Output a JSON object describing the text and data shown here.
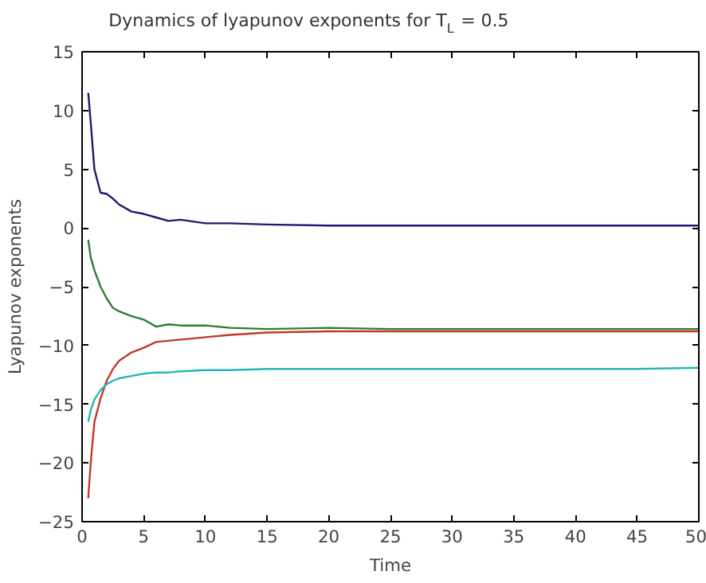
{
  "chart_data": {
    "type": "line",
    "title": "Dynamics of lyapunov exponents for T$_{L}$ = 0.5",
    "xlabel": "Time",
    "ylabel": "Lyapunov exponents",
    "xlim": [
      0,
      50
    ],
    "ylim": [
      -25,
      15
    ],
    "xticks": [
      0,
      5,
      10,
      15,
      20,
      25,
      30,
      35,
      40,
      45,
      50
    ],
    "yticks": [
      -25,
      -20,
      -15,
      -10,
      -5,
      0,
      5,
      10,
      15
    ],
    "grid": false,
    "x": [
      0.5,
      0.7,
      1,
      1.5,
      2,
      2.5,
      3,
      4,
      5,
      6,
      7,
      8,
      10,
      12,
      15,
      20,
      25,
      30,
      35,
      40,
      45,
      50
    ],
    "series": [
      {
        "color": "#1a1a6e",
        "values": [
          11.5,
          9,
          5,
          3,
          2.9,
          2.5,
          2,
          1.4,
          1.2,
          0.9,
          0.6,
          0.7,
          0.4,
          0.4,
          0.3,
          0.2,
          0.2,
          0.2,
          0.2,
          0.2,
          0.2,
          0.2
        ]
      },
      {
        "color": "#2e7d32",
        "values": [
          -1,
          -2.5,
          -3.6,
          -5,
          -6,
          -6.8,
          -7.1,
          -7.5,
          -7.8,
          -8.4,
          -8.2,
          -8.3,
          -8.3,
          -8.5,
          -8.6,
          -8.5,
          -8.6,
          -8.6,
          -8.6,
          -8.6,
          -8.6,
          -8.6
        ]
      },
      {
        "color": "#c0392b",
        "values": [
          -23,
          -20,
          -16.5,
          -14.5,
          -13,
          -12,
          -11.3,
          -10.6,
          -10.2,
          -9.7,
          -9.6,
          -9.5,
          -9.3,
          -9.1,
          -8.9,
          -8.8,
          -8.8,
          -8.8,
          -8.8,
          -8.8,
          -8.8,
          -8.8
        ]
      },
      {
        "color": "#26b5b5",
        "values": [
          -16.5,
          -15.5,
          -14.6,
          -13.8,
          -13.3,
          -13,
          -12.8,
          -12.6,
          -12.4,
          -12.3,
          -12.3,
          -12.2,
          -12.1,
          -12.1,
          -12,
          -12,
          -12,
          -12,
          -12,
          -12,
          -12,
          -11.9
        ]
      }
    ]
  }
}
